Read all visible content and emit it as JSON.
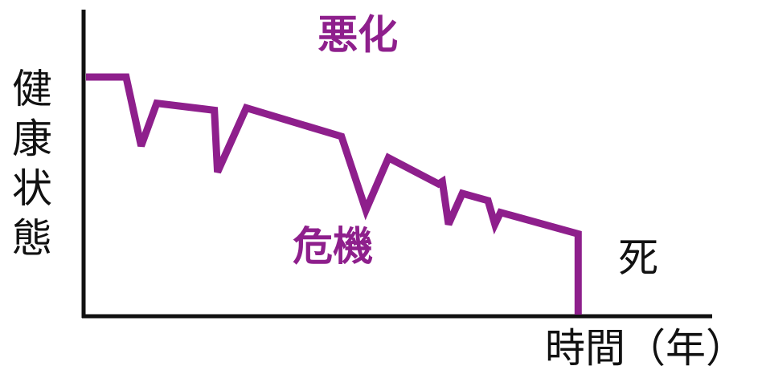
{
  "chart_data": {
    "type": "line",
    "title": "",
    "ylabel": "健康状態",
    "xlabel": "時間（年）",
    "grid": false,
    "legend": "none",
    "series": [
      {
        "color": "#8e1f8c",
        "x": [
          0,
          6.4,
          8.8,
          11.3,
          20.5,
          21.0,
          25.6,
          40.8,
          44.7,
          48.3,
          56.3,
          56.9,
          57.9,
          60.1,
          64.2,
          65.3,
          66.2,
          78.6,
          78.6
        ],
        "y": [
          100,
          100,
          71,
          89,
          86,
          60,
          87,
          75,
          44,
          66,
          55,
          56,
          38,
          51,
          48,
          38,
          43,
          34,
          0
        ]
      }
    ],
    "xlim": [
      0,
      100
    ],
    "ylim": [
      0,
      100
    ],
    "annotations": [
      {
        "text": "悪化",
        "color": "#8e1f8c",
        "x": 37,
        "y": 112
      },
      {
        "text": "危機",
        "color": "#8e1f8c",
        "x": 33,
        "y": 23
      },
      {
        "text": "死",
        "color": "#111111",
        "x": 85,
        "y": 18
      }
    ]
  }
}
